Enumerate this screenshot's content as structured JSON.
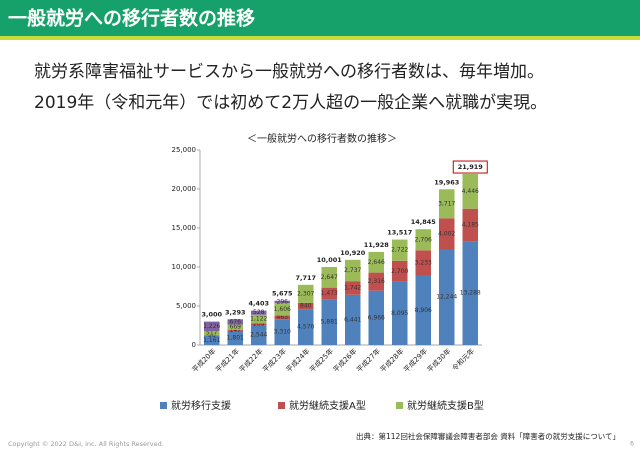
{
  "header": {
    "title": "一般就労への移行者数の推移"
  },
  "body": [
    "就労系障害福祉サービスから一般就労への移行者数は、毎年増加。",
    "2019年（令和元年）では初めて2万人超の一般企業へ就職が実現。"
  ],
  "source": "出典：第112回社会保障審議会障害者部会 資料「障害者の就労支援について」",
  "copyright": "Copyright © 2022 D&I, inc. All Rights Reserved.",
  "page_number": "6",
  "chart_data": {
    "type": "stacked_bar",
    "title": "＜一般就労への移行者数の推移＞",
    "categories": [
      "平成20年",
      "平成21年",
      "平成22年",
      "平成23年",
      "平成24年",
      "平成25年",
      "平成26年",
      "平成27年",
      "平成28年",
      "平成29年",
      "平成30年",
      "令和元年"
    ],
    "series": [
      {
        "name": "就労移行支援",
        "color": "#4f81bd",
        "values": [
          1161,
          1801,
          2544,
          3310,
          4570,
          5881,
          6441,
          6966,
          8095,
          8906,
          12244,
          13288
        ],
        "value_labels": [
          "1,161",
          "1,801",
          "2,544",
          "3,310",
          "4,570",
          "5,881",
          "6,441",
          "6,966",
          "8,095",
          "8,906",
          "12,244",
          "13,288"
        ]
      },
      {
        "name": "就労継続支援A型",
        "color": "#c0504d",
        "values": [
          96,
          147,
          209,
          463,
          840,
          1473,
          1742,
          2316,
          2700,
          3233,
          4002,
          4185
        ],
        "value_labels": [
          "96",
          "147",
          "209",
          "463",
          "840",
          "1,473",
          "1,742",
          "2,316",
          "2,700",
          "3,233",
          "4,002",
          "4,185"
        ]
      },
      {
        "name": "就労継続支援B型",
        "color": "#9bbb59",
        "values": [
          517,
          669,
          1122,
          1606,
          2307,
          2647,
          2737,
          2646,
          2722,
          2706,
          3717,
          4446
        ],
        "value_labels": [
          "517",
          "669",
          "1,122",
          "1,606",
          "2,307",
          "2,647",
          "2,737",
          "2,646",
          "2,722",
          "2,706",
          "3,717",
          "4,446"
        ]
      },
      {
        "color": "#8064a2",
        "values": [
          1226,
          676,
          528,
          296,
          null,
          null,
          null,
          null,
          null,
          null,
          null,
          null
        ],
        "value_labels": [
          "1,226",
          "676",
          "528",
          "296",
          null,
          null,
          null,
          null,
          null,
          null,
          null,
          null
        ]
      }
    ],
    "totals": [
      3000,
      3293,
      4403,
      5675,
      7717,
      10001,
      10920,
      11928,
      13517,
      14845,
      19963,
      21919
    ],
    "total_labels": [
      "3,000",
      "3,293",
      "4,403",
      "5,675",
      "7,717",
      "10,001",
      "10,920",
      "11,928",
      "13,517",
      "14,845",
      "19,963",
      "21,919"
    ],
    "highlight_color": "#c00000",
    "ylim": [
      0,
      25000
    ],
    "yticks": [
      0,
      {
        "value": 5000,
        "label": "5,000"
      },
      {
        "value": 10000,
        "label": "10,000"
      },
      {
        "value": 15000,
        "label": "15,000"
      },
      {
        "value": 20000,
        "label": "20,000"
      },
      {
        "value": 25000,
        "label": "25,000"
      }
    ],
    "legend": "bottom"
  }
}
